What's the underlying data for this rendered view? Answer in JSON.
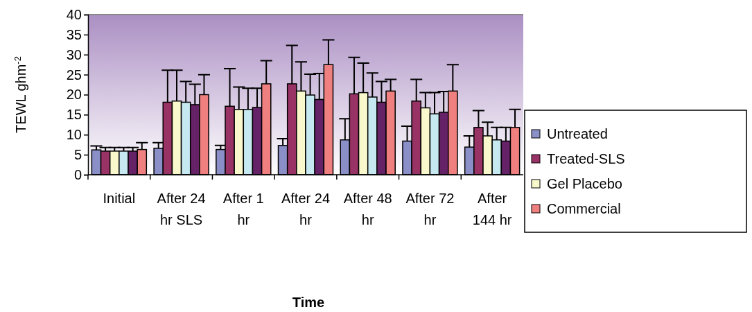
{
  "chart_data": {
    "type": "bar",
    "xlabel": "Time",
    "ylabel": "TEWL ghm$^{-2}$",
    "categories": [
      "Initial",
      "After 24 hr SLS",
      "After 1 hr",
      "After 24 hr",
      "After 48 hr",
      "After 72 hr",
      "After 144 hr"
    ],
    "ylim": [
      0,
      40
    ],
    "yticks": [
      0,
      5,
      10,
      15,
      20,
      25,
      30,
      35,
      40
    ],
    "grid": false,
    "legend": "right",
    "series": [
      {
        "name": "Untreated",
        "color": "#8b8fc7",
        "values": [
          6.2,
          6.6,
          6.3,
          7.3,
          8.7,
          8.4,
          6.9
        ],
        "errors": [
          [
            6.2,
            7.2
          ],
          [
            6.6,
            8
          ],
          [
            6.3,
            7.3
          ],
          [
            7.3,
            9
          ],
          [
            8.7,
            14
          ],
          [
            8.4,
            12.1
          ],
          [
            6.9,
            9.7
          ]
        ]
      },
      {
        "name": "Treated-SLS",
        "color": "#993366",
        "values": [
          5.9,
          18.1,
          17.1,
          22.7,
          20.2,
          18.4,
          11.8
        ],
        "errors": [
          [
            5.9,
            6.8
          ],
          [
            18.1,
            26.1
          ],
          [
            17.1,
            26.5
          ],
          [
            22.7,
            32.3
          ],
          [
            20.2,
            29.3
          ],
          [
            18.4,
            23.8
          ],
          [
            11.8,
            16
          ]
        ]
      },
      {
        "name": "Gel Placebo",
        "color": "#f8f8cc",
        "values": [
          5.9,
          18.4,
          16.3,
          20.9,
          20.5,
          16.7,
          9.7
        ],
        "errors": [
          [
            5.9,
            6.8
          ],
          [
            18.4,
            26.1
          ],
          [
            16.3,
            21.9
          ],
          [
            20.9,
            28.2
          ],
          [
            20.5,
            27.9
          ],
          [
            16.7,
            20.5
          ],
          [
            9.7,
            13.1
          ]
        ]
      },
      {
        "color": "#c6e8f0",
        "values": [
          5.9,
          18.1,
          16.3,
          19.9,
          19.4,
          15.2,
          8.7
        ],
        "errors": [
          [
            5.9,
            6.8
          ],
          [
            18.1,
            23.3
          ],
          [
            16.3,
            21.6
          ],
          [
            19.9,
            25.1
          ],
          [
            19.4,
            25.4
          ],
          [
            15.2,
            20.5
          ],
          [
            8.7,
            11.8
          ]
        ]
      },
      {
        "color": "#662266",
        "values": [
          5.9,
          17.5,
          16.8,
          18.8,
          18.1,
          15.6,
          8.4
        ],
        "errors": [
          [
            5.9,
            6.8
          ],
          [
            17.5,
            22.6
          ],
          [
            16.8,
            21.6
          ],
          [
            18.8,
            25.3
          ],
          [
            18.1,
            23.3
          ],
          [
            15.6,
            20.8
          ],
          [
            8.4,
            11.8
          ]
        ]
      },
      {
        "name": "Commercial",
        "color": "#f08080",
        "values": [
          6.3,
          20,
          22.7,
          27.5,
          20.9,
          20.9,
          11.8
        ],
        "errors": [
          [
            6.3,
            8
          ],
          [
            20,
            25
          ],
          [
            22.7,
            28.5
          ],
          [
            27.5,
            33.7
          ],
          [
            20.9,
            23.8
          ],
          [
            20.9,
            27.5
          ],
          [
            11.8,
            16.3
          ]
        ]
      }
    ]
  }
}
